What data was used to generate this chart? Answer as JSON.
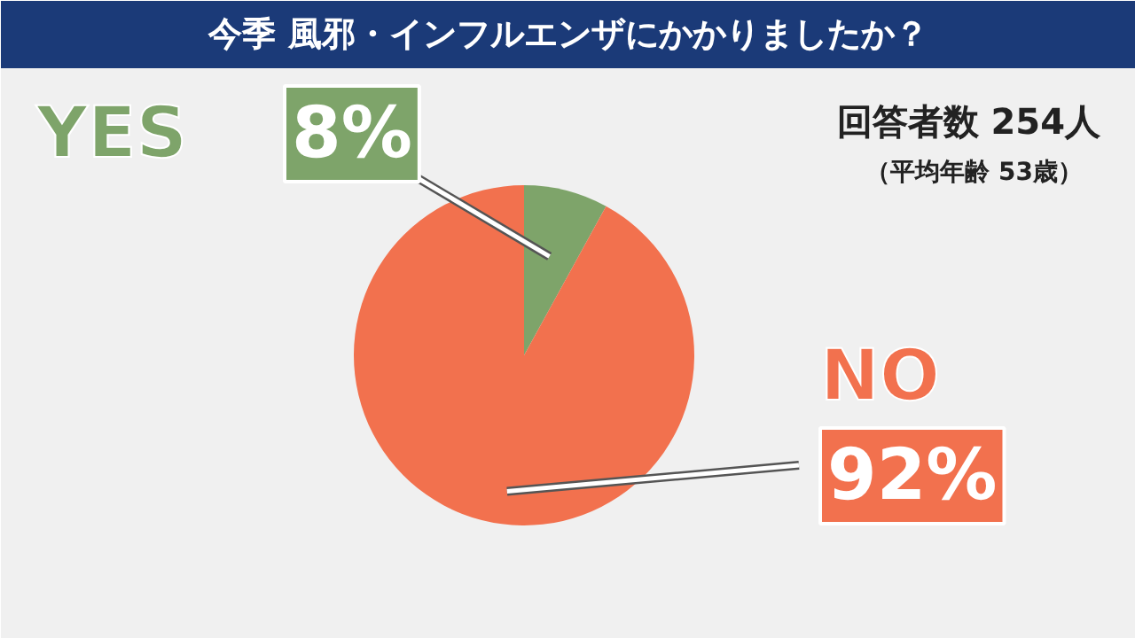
{
  "chart_data": {
    "type": "pie",
    "title": "今季 風邪・インフルエンザにかかりましたか？",
    "subtitle": "回答者数 254人",
    "annotations": [
      "（平均年齢 53歳）"
    ],
    "categories": [
      "YES",
      "NO"
    ],
    "values": [
      8,
      92
    ],
    "colors": [
      "#7ea46a",
      "#f2714e"
    ],
    "value_labels": [
      "8%",
      "92%"
    ]
  }
}
